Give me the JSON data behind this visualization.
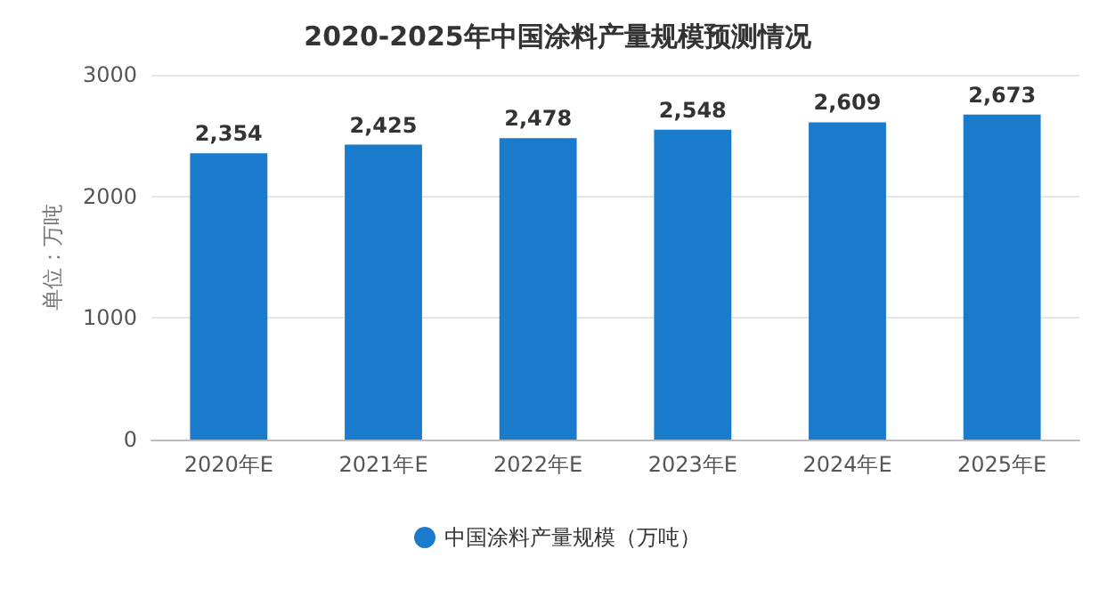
{
  "chart_data": {
    "type": "bar",
    "title": "2020-2025年中国涂料产量规模预测情况",
    "ylabel": "单位：万吨",
    "categories": [
      "2020年E",
      "2021年E",
      "2022年E",
      "2023年E",
      "2024年E",
      "2025年E"
    ],
    "series": [
      {
        "name": "中国涂料产量规模（万吨）",
        "color": "#1a7acb",
        "values": [
          2354,
          2425,
          2478,
          2548,
          2609,
          2673
        ],
        "value_labels": [
          "2,354",
          "2,425",
          "2,478",
          "2,548",
          "2,609",
          "2,673"
        ]
      }
    ],
    "ylim": [
      0,
      3000
    ],
    "yticks": [
      0,
      1000,
      2000,
      3000
    ],
    "grid": "y",
    "legend": "bottom",
    "marker": "circle"
  }
}
